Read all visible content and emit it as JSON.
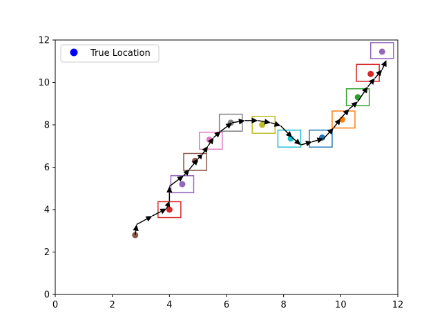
{
  "chart_data": {
    "type": "scatter",
    "xlim": [
      0,
      12
    ],
    "ylim": [
      0,
      12
    ],
    "xticks": [
      0,
      2,
      4,
      6,
      8,
      10,
      12
    ],
    "yticks": [
      0,
      2,
      4,
      6,
      8,
      10,
      12
    ],
    "xtick_labels": [
      "0",
      "2",
      "4",
      "6",
      "8",
      "10",
      "12"
    ],
    "ytick_labels": [
      "0",
      "2",
      "4",
      "6",
      "8",
      "10",
      "12"
    ],
    "grid": false,
    "legend": {
      "position": "top-left",
      "entries": [
        {
          "label": "True Location",
          "color": "#0000ff"
        }
      ]
    },
    "true_locations": [
      {
        "x": 2.8,
        "y": 2.8,
        "color": "#8c564b"
      },
      {
        "x": 4.0,
        "y": 4.0,
        "color": "#d62728"
      },
      {
        "x": 4.45,
        "y": 5.2,
        "color": "#9467bd"
      },
      {
        "x": 4.9,
        "y": 6.3,
        "color": "#8c564b"
      },
      {
        "x": 5.4,
        "y": 7.3,
        "color": "#e377c2"
      },
      {
        "x": 6.15,
        "y": 8.1,
        "color": "#7f7f7f"
      },
      {
        "x": 7.25,
        "y": 8.0,
        "color": "#bcbd22"
      },
      {
        "x": 8.25,
        "y": 7.35,
        "color": "#17becf"
      },
      {
        "x": 9.35,
        "y": 7.4,
        "color": "#1f77b4"
      },
      {
        "x": 10.05,
        "y": 8.25,
        "color": "#ff7f0e"
      },
      {
        "x": 10.6,
        "y": 9.3,
        "color": "#2ca02c"
      },
      {
        "x": 11.05,
        "y": 10.4,
        "color": "#d62728"
      },
      {
        "x": 11.45,
        "y": 11.45,
        "color": "#9467bd"
      }
    ],
    "estimate_boxes": [
      {
        "x": 4.0,
        "y": 4.0,
        "w": 0.8,
        "h": 0.75,
        "color": "#d62728"
      },
      {
        "x": 4.45,
        "y": 5.2,
        "w": 0.8,
        "h": 0.8,
        "color": "#9467bd"
      },
      {
        "x": 4.9,
        "y": 6.25,
        "w": 0.8,
        "h": 0.8,
        "color": "#8c564b"
      },
      {
        "x": 5.45,
        "y": 7.25,
        "w": 0.8,
        "h": 0.8,
        "color": "#e377c2"
      },
      {
        "x": 6.15,
        "y": 8.1,
        "w": 0.8,
        "h": 0.8,
        "color": "#7f7f7f"
      },
      {
        "x": 7.3,
        "y": 8.0,
        "w": 0.8,
        "h": 0.8,
        "color": "#bcbd22"
      },
      {
        "x": 8.2,
        "y": 7.35,
        "w": 0.8,
        "h": 0.8,
        "color": "#17becf"
      },
      {
        "x": 9.3,
        "y": 7.35,
        "w": 0.8,
        "h": 0.8,
        "color": "#1f77b4"
      },
      {
        "x": 10.1,
        "y": 8.25,
        "w": 0.8,
        "h": 0.8,
        "color": "#ff7f0e"
      },
      {
        "x": 10.6,
        "y": 9.3,
        "w": 0.8,
        "h": 0.8,
        "color": "#2ca02c"
      },
      {
        "x": 10.95,
        "y": 10.45,
        "w": 0.8,
        "h": 0.8,
        "color": "#d62728"
      },
      {
        "x": 11.45,
        "y": 11.5,
        "w": 0.8,
        "h": 0.75,
        "color": "#9467bd"
      }
    ],
    "path": [
      [
        2.8,
        2.8
      ],
      [
        2.85,
        3.3
      ],
      [
        3.4,
        3.7
      ],
      [
        3.9,
        4.05
      ],
      [
        4.0,
        4.4
      ],
      [
        4.0,
        5.1
      ],
      [
        4.5,
        5.6
      ],
      [
        4.7,
        5.9
      ],
      [
        5.0,
        6.4
      ],
      [
        5.15,
        6.6
      ],
      [
        5.35,
        7.0
      ],
      [
        5.55,
        7.4
      ],
      [
        5.8,
        7.7
      ],
      [
        6.2,
        8.1
      ],
      [
        6.65,
        8.2
      ],
      [
        7.1,
        8.2
      ],
      [
        7.55,
        8.1
      ],
      [
        7.9,
        7.95
      ],
      [
        8.3,
        7.4
      ],
      [
        8.6,
        7.05
      ],
      [
        9.0,
        7.2
      ],
      [
        9.4,
        7.35
      ],
      [
        9.75,
        7.85
      ],
      [
        10.0,
        8.3
      ],
      [
        10.3,
        8.75
      ],
      [
        10.6,
        9.1
      ],
      [
        10.95,
        9.8
      ],
      [
        11.2,
        10.2
      ],
      [
        11.45,
        10.6
      ],
      [
        11.6,
        11.05
      ]
    ]
  }
}
